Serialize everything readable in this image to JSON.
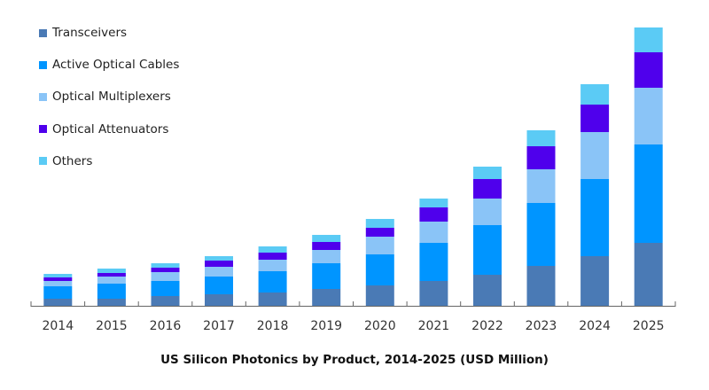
{
  "chart_data": {
    "type": "bar",
    "stacked": true,
    "title": "US Silicon Photonics by Product, 2014-2025 (USD Million)",
    "xlabel": "",
    "ylabel": "",
    "y_axis_visible": false,
    "grid": false,
    "legend_position": "top-left",
    "categories": [
      "2014",
      "2015",
      "2016",
      "2017",
      "2018",
      "2019",
      "2020",
      "2021",
      "2022",
      "2023",
      "2024",
      "2025"
    ],
    "series": [
      {
        "name": "Transceivers",
        "color": "#4A7AB5",
        "values": [
          8,
          8,
          11,
          13,
          15,
          19,
          23,
          28,
          35,
          45,
          56,
          71
        ]
      },
      {
        "name": "Active Optical Cables",
        "color": "#0095FF",
        "values": [
          14,
          17,
          17,
          20,
          24,
          29,
          35,
          43,
          56,
          71,
          87,
          111
        ]
      },
      {
        "name": "Optical Multiplexers",
        "color": "#8AC4F7",
        "values": [
          6,
          8,
          10,
          11,
          13,
          15,
          20,
          24,
          30,
          38,
          53,
          64
        ]
      },
      {
        "name": "Optical Attenuators",
        "color": "#4F00EC",
        "values": [
          4,
          4,
          5,
          7,
          8,
          9,
          10,
          16,
          22,
          26,
          31,
          40
        ]
      },
      {
        "name": "Others",
        "color": "#5BCBF5",
        "values": [
          4,
          5,
          5,
          5,
          7,
          8,
          10,
          10,
          14,
          18,
          23,
          28
        ]
      }
    ],
    "units_note": "relative units (no y-axis shown)"
  }
}
